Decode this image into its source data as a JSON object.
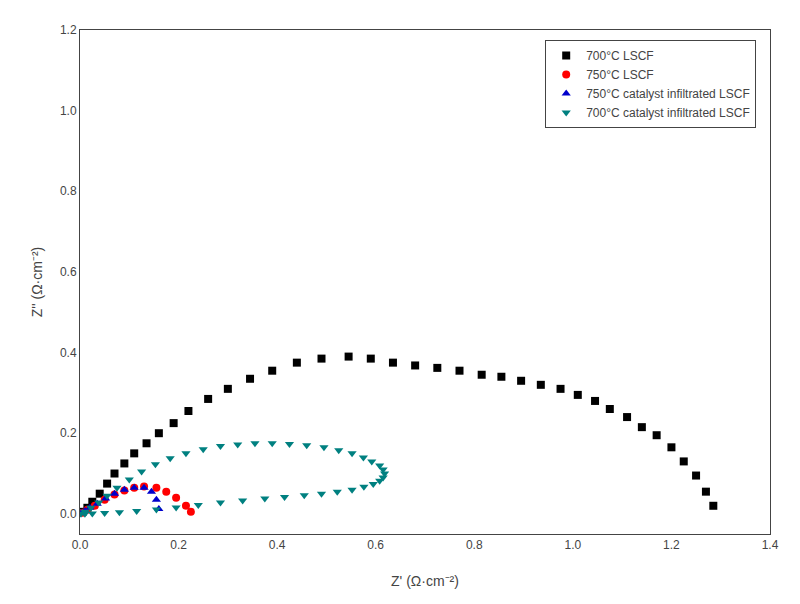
{
  "chart_data": {
    "type": "scatter",
    "x_label": "Z' (Ω·cm⁻²)",
    "y_label": "Z'' (Ω·cm⁻²)",
    "xlim": [
      0,
      1.4
    ],
    "ylim": [
      -0.05,
      1.2
    ],
    "xticks": [
      {
        "value": 0,
        "label": "0.0"
      },
      0.2,
      0.4,
      0.6,
      0.8,
      {
        "value": 1,
        "label": "1.0"
      },
      1.2,
      1.4
    ],
    "yticks": [
      {
        "value": 0,
        "label": "0.0"
      },
      0.2,
      0.4,
      0.6,
      0.8,
      {
        "value": 1,
        "label": "1.0"
      },
      1.2
    ],
    "grid": false,
    "legend": "upper right",
    "series": [
      {
        "name": "700°C LSCF",
        "color": "#000000",
        "marker": "square",
        "x": [
          0.005,
          0.015,
          0.025,
          0.04,
          0.055,
          0.07,
          0.09,
          0.11,
          0.135,
          0.16,
          0.19,
          0.22,
          0.26,
          0.3,
          0.345,
          0.39,
          0.44,
          0.49,
          0.545,
          0.59,
          0.635,
          0.68,
          0.725,
          0.77,
          0.815,
          0.855,
          0.895,
          0.935,
          0.975,
          1.01,
          1.045,
          1.075,
          1.11,
          1.14,
          1.17,
          1.2,
          1.225,
          1.25,
          1.27,
          1.285
        ],
        "values": [
          0.005,
          0.015,
          0.03,
          0.05,
          0.075,
          0.1,
          0.125,
          0.15,
          0.175,
          0.2,
          0.225,
          0.255,
          0.285,
          0.31,
          0.335,
          0.355,
          0.375,
          0.385,
          0.39,
          0.385,
          0.375,
          0.368,
          0.362,
          0.355,
          0.345,
          0.34,
          0.33,
          0.32,
          0.31,
          0.295,
          0.28,
          0.26,
          0.24,
          0.215,
          0.195,
          0.165,
          0.13,
          0.095,
          0.055,
          0.02
        ]
      },
      {
        "name": "750°C LSCF",
        "color": "#ff0000",
        "marker": "circle",
        "x": [
          0.005,
          0.015,
          0.03,
          0.05,
          0.07,
          0.09,
          0.11,
          0.13,
          0.155,
          0.175,
          0.195,
          0.215,
          0.225
        ],
        "values": [
          0.003,
          0.01,
          0.02,
          0.035,
          0.048,
          0.058,
          0.065,
          0.068,
          0.065,
          0.055,
          0.04,
          0.02,
          0.005
        ]
      },
      {
        "name": "750°C catalyst infiltrated LSCF",
        "color": "#0000cc",
        "marker": "triangle-up",
        "x": [
          0.003,
          0.01,
          0.02,
          0.035,
          0.052,
          0.07,
          0.09,
          0.11,
          0.13,
          0.145,
          0.155,
          0.16
        ],
        "values": [
          0.002,
          0.007,
          0.015,
          0.025,
          0.038,
          0.05,
          0.06,
          0.065,
          0.065,
          0.055,
          0.035,
          0.012
        ]
      },
      {
        "name": "700°C catalyst infiltrated LSCF",
        "color": "#008080",
        "marker": "triangle-down",
        "x": [
          0.01,
          0.022,
          0.038,
          0.055,
          0.075,
          0.1,
          0.125,
          0.153,
          0.183,
          0.215,
          0.25,
          0.285,
          0.32,
          0.355,
          0.39,
          0.425,
          0.46,
          0.495,
          0.525,
          0.552,
          0.575,
          0.592,
          0.608,
          0.615,
          0.618,
          0.615,
          0.608,
          0.595,
          0.576,
          0.552,
          0.522,
          0.49,
          0.455,
          0.415,
          0.375,
          0.33,
          0.285,
          0.24,
          0.195,
          0.155,
          0.115,
          0.08,
          0.05,
          0.025,
          0.01,
          0.002
        ],
        "values": [
          0.005,
          0.015,
          0.028,
          0.045,
          0.065,
          0.085,
          0.105,
          0.123,
          0.138,
          0.15,
          0.16,
          0.168,
          0.172,
          0.175,
          0.175,
          0.173,
          0.17,
          0.165,
          0.158,
          0.15,
          0.14,
          0.13,
          0.12,
          0.11,
          0.1,
          0.09,
          0.082,
          0.074,
          0.067,
          0.06,
          0.055,
          0.05,
          0.046,
          0.042,
          0.038,
          0.033,
          0.028,
          0.022,
          0.016,
          0.011,
          0.007,
          0.004,
          0.002,
          0.001,
          0.0005,
          0.0
        ]
      }
    ]
  }
}
